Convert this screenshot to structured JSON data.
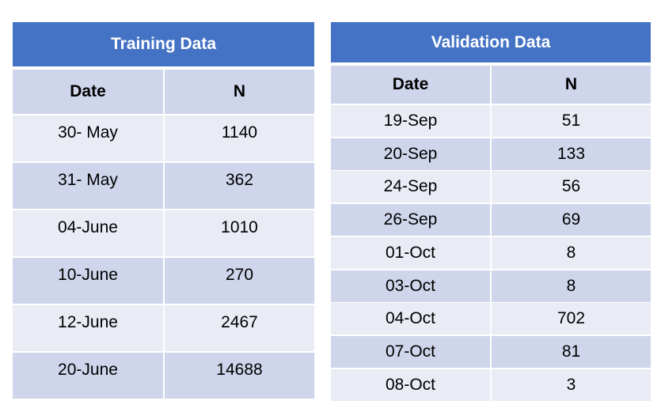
{
  "training": {
    "title": "Training Data",
    "headers": [
      "Date",
      "N"
    ],
    "rows": [
      {
        "date": "30- May",
        "n": "1140"
      },
      {
        "date": "31- May",
        "n": "362"
      },
      {
        "date": "04-June",
        "n": "1010"
      },
      {
        "date": "10-June",
        "n": "270"
      },
      {
        "date": "12-June",
        "n": "2467"
      },
      {
        "date": "20-June",
        "n": "14688"
      }
    ]
  },
  "validation": {
    "title": "Validation Data",
    "headers": [
      "Date",
      "N"
    ],
    "rows": [
      {
        "date": "19-Sep",
        "n": "51"
      },
      {
        "date": "20-Sep",
        "n": "133"
      },
      {
        "date": "24-Sep",
        "n": "56"
      },
      {
        "date": "26-Sep",
        "n": "69"
      },
      {
        "date": "01-Oct",
        "n": "8"
      },
      {
        "date": "03-Oct",
        "n": "8"
      },
      {
        "date": "04-Oct",
        "n": "702"
      },
      {
        "date": "07-Oct",
        "n": "81"
      },
      {
        "date": "08-Oct",
        "n": "3"
      }
    ]
  },
  "colors": {
    "title_bar": "#4472C4",
    "header_row": "#CFD5EA",
    "row_light": "#E9EBF5",
    "row_dark": "#CFD5EA"
  }
}
